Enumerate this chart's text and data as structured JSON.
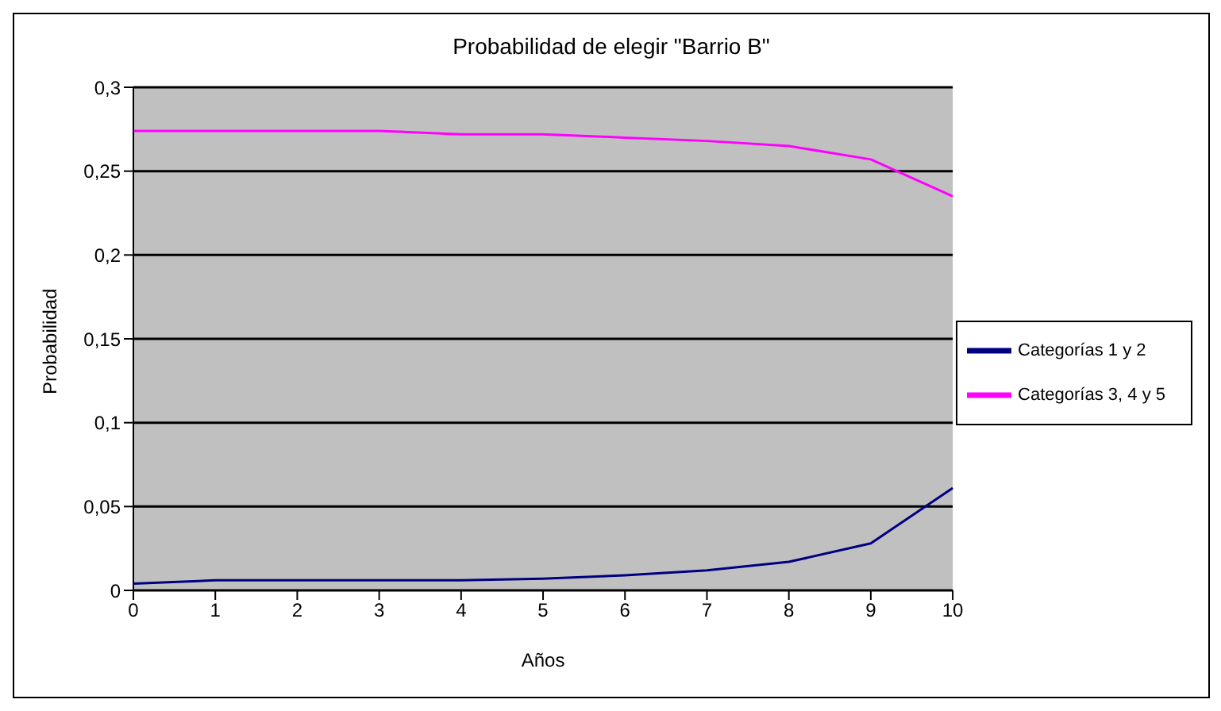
{
  "chart_data": {
    "type": "line",
    "title": "Probabilidad de elegir \"Barrio B\"",
    "xlabel": "Años",
    "ylabel": "Probabilidad",
    "categories": [
      "0",
      "1",
      "2",
      "3",
      "4",
      "5",
      "6",
      "7",
      "8",
      "9",
      "10"
    ],
    "series": [
      {
        "name": "Categorías 1 y 2",
        "color": "#000080",
        "values": [
          0.004,
          0.006,
          0.006,
          0.006,
          0.006,
          0.007,
          0.009,
          0.012,
          0.017,
          0.028,
          0.061
        ]
      },
      {
        "name": "Categorías 3, 4 y 5",
        "color": "#ff00ff",
        "values": [
          0.274,
          0.274,
          0.274,
          0.274,
          0.272,
          0.272,
          0.27,
          0.268,
          0.265,
          0.257,
          0.235
        ]
      }
    ],
    "ylim": [
      0,
      0.3
    ],
    "yticks": [
      0,
      {
        "value": 0.05,
        "label": "0,05"
      },
      {
        "value": 0.1,
        "label": "0,1"
      },
      {
        "value": 0.15,
        "label": "0,15"
      },
      {
        "value": 0.2,
        "label": "0,2"
      },
      {
        "value": 0.25,
        "label": "0,25"
      },
      {
        "value": 0.3,
        "label": "0,3"
      }
    ],
    "grid": "y",
    "legend": "right",
    "marker": "none",
    "line_style": "solid"
  }
}
